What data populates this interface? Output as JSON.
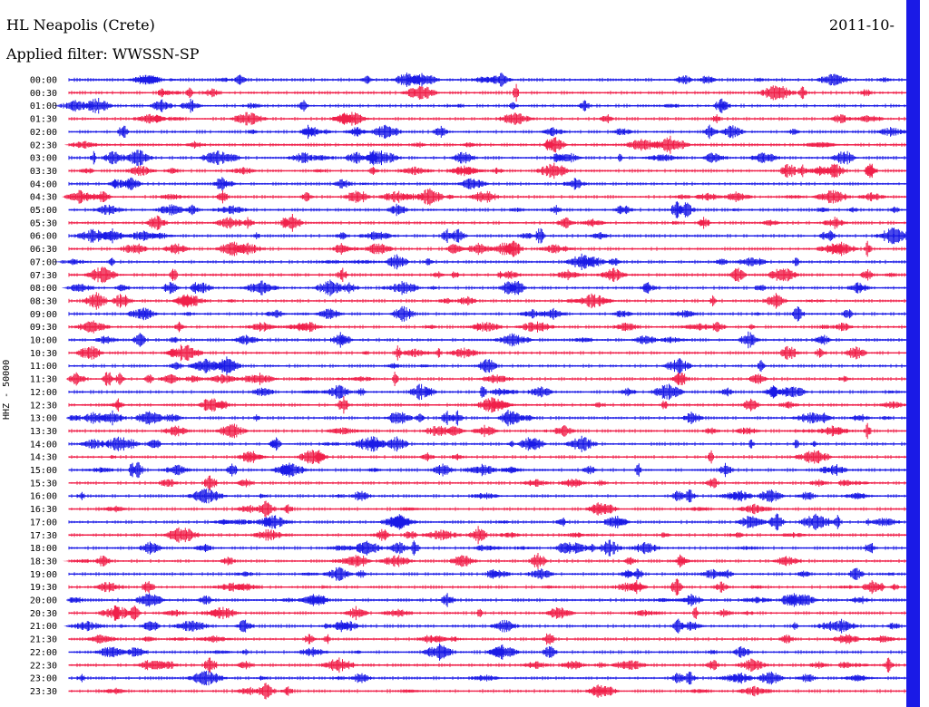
{
  "header": {
    "station": "HL Neapolis (Crete)",
    "date": "2011-10-",
    "filter": "Applied filter: WWSSN-SP",
    "channel": "HHZ - 50000"
  },
  "colors": {
    "blue": "#1a1ae6",
    "red": "#f0204a",
    "edge_band": "#1a1ae6"
  },
  "chart_data": {
    "type": "line",
    "title": "HL Neapolis (Crete)",
    "subtitle": "Applied filter: WWSSN-SP",
    "xlabel": "",
    "ylabel": "HHZ - 50000",
    "grid": false,
    "legend": "none",
    "row_labels": [
      "00:00",
      "00:30",
      "01:00",
      "01:30",
      "02:00",
      "02:30",
      "03:00",
      "03:30",
      "04:00",
      "04:30",
      "05:00",
      "05:30",
      "06:00",
      "06:30",
      "07:00",
      "07:30",
      "08:00",
      "08:30",
      "09:00",
      "09:30",
      "10:00",
      "10:30",
      "11:00",
      "11:30",
      "12:00",
      "12:30",
      "13:00",
      "13:30",
      "14:00",
      "14:30",
      "15:00",
      "15:30",
      "16:00",
      "16:30",
      "17:00",
      "17:30",
      "18:00",
      "18:30",
      "19:00",
      "19:30",
      "20:00",
      "20:30",
      "21:00",
      "21:30",
      "22:00",
      "22:30",
      "23:00",
      "23:30"
    ],
    "row_colors": [
      "blue",
      "red"
    ]
  }
}
